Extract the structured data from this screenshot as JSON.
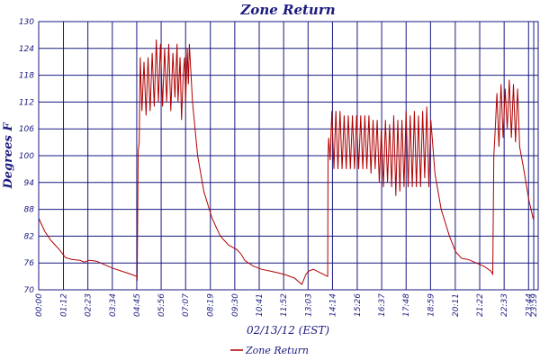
{
  "chart_data": {
    "type": "line",
    "title": "Zone Return",
    "xlabel": "02/13/12 (EST)",
    "ylabel": "Degrees F",
    "ylim": [
      70,
      130
    ],
    "yticks": [
      70,
      76,
      82,
      88,
      94,
      100,
      106,
      112,
      118,
      124,
      130
    ],
    "xlim": [
      0,
      24.2
    ],
    "xticks": [
      {
        "value": 0.0,
        "label": "00:00"
      },
      {
        "value": 1.2,
        "label": "01:12"
      },
      {
        "value": 2.383,
        "label": "02:23"
      },
      {
        "value": 3.567,
        "label": "03:34"
      },
      {
        "value": 4.75,
        "label": "04:45"
      },
      {
        "value": 5.933,
        "label": "05:56"
      },
      {
        "value": 7.117,
        "label": "07:07"
      },
      {
        "value": 8.317,
        "label": "08:19"
      },
      {
        "value": 9.5,
        "label": "09:30"
      },
      {
        "value": 10.683,
        "label": "10:41"
      },
      {
        "value": 11.867,
        "label": "11:52"
      },
      {
        "value": 13.05,
        "label": "13:03"
      },
      {
        "value": 14.233,
        "label": "14:14"
      },
      {
        "value": 15.433,
        "label": "15:26"
      },
      {
        "value": 16.617,
        "label": "16:37"
      },
      {
        "value": 17.8,
        "label": "17:48"
      },
      {
        "value": 18.983,
        "label": "18:59"
      },
      {
        "value": 20.183,
        "label": "20:11"
      },
      {
        "value": 21.367,
        "label": "21:22"
      },
      {
        "value": 22.55,
        "label": "22:33"
      },
      {
        "value": 23.733,
        "label": "23:44"
      },
      {
        "value": 23.983,
        "label": "23:59"
      }
    ],
    "grid": true,
    "legend": "bottom",
    "series": [
      {
        "name": "Zone Return",
        "color": "#b00000",
        "points": [
          [
            0.0,
            86.0
          ],
          [
            0.3,
            83.0
          ],
          [
            0.6,
            81.0
          ],
          [
            1.0,
            79.0
          ],
          [
            1.3,
            77.2
          ],
          [
            1.6,
            76.8
          ],
          [
            2.0,
            76.6
          ],
          [
            2.2,
            76.2
          ],
          [
            2.45,
            76.6
          ],
          [
            2.8,
            76.4
          ],
          [
            3.2,
            75.6
          ],
          [
            3.6,
            74.8
          ],
          [
            4.0,
            74.2
          ],
          [
            4.4,
            73.6
          ],
          [
            4.75,
            73.0
          ],
          [
            4.77,
            72.0
          ],
          [
            4.82,
            101.0
          ],
          [
            4.87,
            103.0
          ],
          [
            4.92,
            122.0
          ],
          [
            5.0,
            110.0
          ],
          [
            5.1,
            121.0
          ],
          [
            5.2,
            109.0
          ],
          [
            5.3,
            122.0
          ],
          [
            5.4,
            110.0
          ],
          [
            5.5,
            123.0
          ],
          [
            5.6,
            111.0
          ],
          [
            5.7,
            126.0
          ],
          [
            5.8,
            112.0
          ],
          [
            5.9,
            125.0
          ],
          [
            6.0,
            111.0
          ],
          [
            6.1,
            124.0
          ],
          [
            6.2,
            112.0
          ],
          [
            6.3,
            125.0
          ],
          [
            6.4,
            110.0
          ],
          [
            6.5,
            123.0
          ],
          [
            6.6,
            113.0
          ],
          [
            6.7,
            125.0
          ],
          [
            6.75,
            112.0
          ],
          [
            6.85,
            122.0
          ],
          [
            6.92,
            108.0
          ],
          [
            7.0,
            118.0
          ],
          [
            7.07,
            122.0
          ],
          [
            7.12,
            112.0
          ],
          [
            7.2,
            124.0
          ],
          [
            7.25,
            116.0
          ],
          [
            7.3,
            125.0
          ],
          [
            7.45,
            112.0
          ],
          [
            7.7,
            100.0
          ],
          [
            8.0,
            92.0
          ],
          [
            8.4,
            86.0
          ],
          [
            8.8,
            82.0
          ],
          [
            9.2,
            80.0
          ],
          [
            9.6,
            79.0
          ],
          [
            9.8,
            78.0
          ],
          [
            10.0,
            76.5
          ],
          [
            10.4,
            75.3
          ],
          [
            10.8,
            74.6
          ],
          [
            11.2,
            74.2
          ],
          [
            11.6,
            73.8
          ],
          [
            12.0,
            73.3
          ],
          [
            12.4,
            72.6
          ],
          [
            12.75,
            71.2
          ],
          [
            12.95,
            73.5
          ],
          [
            13.1,
            74.2
          ],
          [
            13.3,
            74.6
          ],
          [
            13.6,
            73.9
          ],
          [
            13.9,
            73.2
          ],
          [
            14.0,
            73.0
          ],
          [
            14.02,
            100.0
          ],
          [
            14.05,
            104.0
          ],
          [
            14.12,
            99.0
          ],
          [
            14.2,
            110.0
          ],
          [
            14.3,
            97.0
          ],
          [
            14.4,
            110.0
          ],
          [
            14.5,
            97.0
          ],
          [
            14.6,
            110.0
          ],
          [
            14.7,
            97.0
          ],
          [
            14.8,
            109.0
          ],
          [
            14.9,
            97.0
          ],
          [
            15.0,
            109.0
          ],
          [
            15.1,
            97.0
          ],
          [
            15.2,
            109.0
          ],
          [
            15.3,
            97.0
          ],
          [
            15.4,
            109.0
          ],
          [
            15.5,
            97.0
          ],
          [
            15.6,
            109.0
          ],
          [
            15.7,
            97.0
          ],
          [
            15.8,
            109.0
          ],
          [
            15.9,
            97.0
          ],
          [
            16.0,
            109.0
          ],
          [
            16.1,
            96.0
          ],
          [
            16.2,
            108.0
          ],
          [
            16.3,
            97.0
          ],
          [
            16.4,
            108.0
          ],
          [
            16.5,
            94.0
          ],
          [
            16.6,
            106.0
          ],
          [
            16.7,
            93.0
          ],
          [
            16.8,
            108.0
          ],
          [
            16.9,
            94.0
          ],
          [
            17.0,
            107.0
          ],
          [
            17.1,
            93.0
          ],
          [
            17.2,
            109.0
          ],
          [
            17.3,
            91.0
          ],
          [
            17.4,
            108.0
          ],
          [
            17.5,
            92.0
          ],
          [
            17.6,
            108.0
          ],
          [
            17.7,
            93.0
          ],
          [
            17.8,
            110.0
          ],
          [
            17.9,
            93.0
          ],
          [
            18.0,
            109.0
          ],
          [
            18.1,
            93.0
          ],
          [
            18.2,
            110.0
          ],
          [
            18.3,
            93.0
          ],
          [
            18.4,
            109.0
          ],
          [
            18.5,
            93.0
          ],
          [
            18.6,
            110.0
          ],
          [
            18.7,
            95.0
          ],
          [
            18.8,
            111.0
          ],
          [
            18.9,
            93.0
          ],
          [
            19.0,
            108.0
          ],
          [
            19.2,
            96.0
          ],
          [
            19.5,
            88.0
          ],
          [
            19.9,
            82.0
          ],
          [
            20.2,
            78.5
          ],
          [
            20.5,
            77.0
          ],
          [
            20.8,
            76.8
          ],
          [
            21.2,
            76.0
          ],
          [
            21.6,
            75.2
          ],
          [
            21.9,
            74.2
          ],
          [
            22.0,
            73.5
          ],
          [
            22.05,
            100.0
          ],
          [
            22.12,
            106.0
          ],
          [
            22.2,
            114.0
          ],
          [
            22.3,
            102.0
          ],
          [
            22.4,
            116.0
          ],
          [
            22.5,
            104.0
          ],
          [
            22.6,
            115.0
          ],
          [
            22.7,
            106.0
          ],
          [
            22.8,
            117.0
          ],
          [
            22.9,
            104.0
          ],
          [
            23.0,
            116.0
          ],
          [
            23.1,
            103.0
          ],
          [
            23.2,
            115.0
          ],
          [
            23.3,
            102.0
          ],
          [
            23.5,
            97.0
          ],
          [
            23.75,
            90.0
          ],
          [
            23.95,
            86.0
          ],
          [
            24.0,
            86.5
          ]
        ]
      }
    ]
  }
}
